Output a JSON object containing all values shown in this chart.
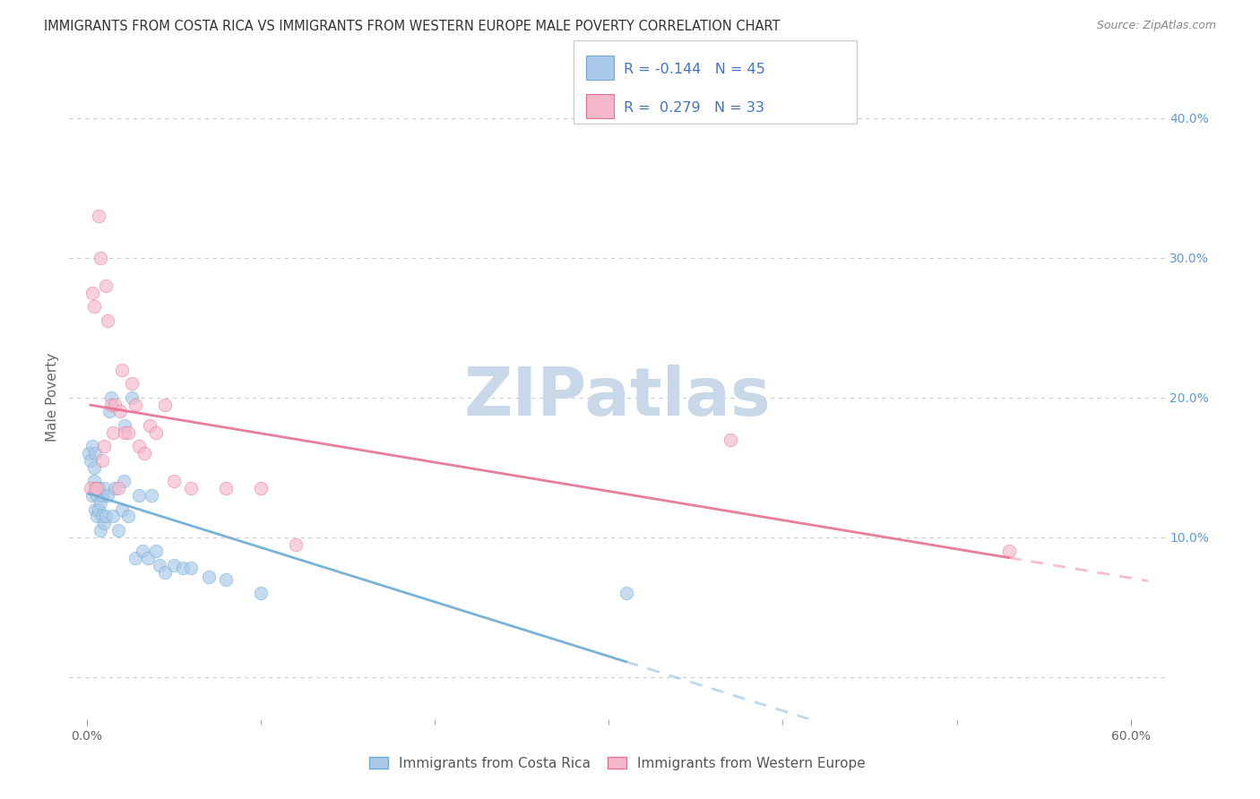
{
  "title": "IMMIGRANTS FROM COSTA RICA VS IMMIGRANTS FROM WESTERN EUROPE MALE POVERTY CORRELATION CHART",
  "source": "Source: ZipAtlas.com",
  "ylabel": "Male Poverty",
  "watermark": "ZIPatlas",
  "series": [
    {
      "name": "Immigrants from Costa Rica",
      "color": "#aac9e8",
      "border_color": "#6aabd6",
      "R": -0.144,
      "N": 45,
      "x": [
        0.001,
        0.002,
        0.003,
        0.003,
        0.004,
        0.004,
        0.005,
        0.005,
        0.006,
        0.006,
        0.007,
        0.007,
        0.008,
        0.008,
        0.009,
        0.009,
        0.01,
        0.01,
        0.011,
        0.012,
        0.013,
        0.014,
        0.015,
        0.016,
        0.018,
        0.02,
        0.021,
        0.022,
        0.024,
        0.026,
        0.028,
        0.03,
        0.032,
        0.035,
        0.037,
        0.04,
        0.042,
        0.045,
        0.05,
        0.055,
        0.06,
        0.07,
        0.08,
        0.1,
        0.31
      ],
      "y": [
        0.16,
        0.155,
        0.165,
        0.13,
        0.15,
        0.14,
        0.16,
        0.12,
        0.13,
        0.115,
        0.135,
        0.12,
        0.125,
        0.105,
        0.115,
        0.13,
        0.135,
        0.11,
        0.115,
        0.13,
        0.19,
        0.2,
        0.115,
        0.135,
        0.105,
        0.12,
        0.14,
        0.18,
        0.115,
        0.2,
        0.085,
        0.13,
        0.09,
        0.085,
        0.13,
        0.09,
        0.08,
        0.075,
        0.08,
        0.078,
        0.078,
        0.072,
        0.07,
        0.06,
        0.06
      ]
    },
    {
      "name": "Immigrants from Western Europe",
      "color": "#f5b8cb",
      "border_color": "#e8708f",
      "R": 0.279,
      "N": 33,
      "x": [
        0.002,
        0.003,
        0.004,
        0.005,
        0.006,
        0.007,
        0.008,
        0.009,
        0.01,
        0.011,
        0.012,
        0.014,
        0.015,
        0.016,
        0.018,
        0.019,
        0.02,
        0.022,
        0.024,
        0.026,
        0.028,
        0.03,
        0.033,
        0.036,
        0.04,
        0.045,
        0.05,
        0.06,
        0.08,
        0.1,
        0.12,
        0.37,
        0.53
      ],
      "y": [
        0.135,
        0.275,
        0.265,
        0.135,
        0.135,
        0.33,
        0.3,
        0.155,
        0.165,
        0.28,
        0.255,
        0.195,
        0.175,
        0.195,
        0.135,
        0.19,
        0.22,
        0.175,
        0.175,
        0.21,
        0.195,
        0.165,
        0.16,
        0.18,
        0.175,
        0.195,
        0.14,
        0.135,
        0.135,
        0.135,
        0.095,
        0.17,
        0.09
      ]
    }
  ],
  "xlim": [
    -0.01,
    0.62
  ],
  "ylim": [
    -0.03,
    0.43
  ],
  "xtick_positions": [
    0.0,
    0.6
  ],
  "xtick_labels": [
    "0.0%",
    "60.0%"
  ],
  "yticks_right": [
    0.0,
    0.1,
    0.2,
    0.3,
    0.4
  ],
  "ytick_labels_right": [
    "",
    "10.0%",
    "20.0%",
    "30.0%",
    "40.0%"
  ],
  "grid_color": "#cccccc",
  "background_color": "#ffffff",
  "title_color": "#333333",
  "right_axis_color": "#5b9bd5",
  "watermark_color": "#c8d8e8",
  "marker_size": 110,
  "marker_alpha": 0.65,
  "line_width": 2.0
}
